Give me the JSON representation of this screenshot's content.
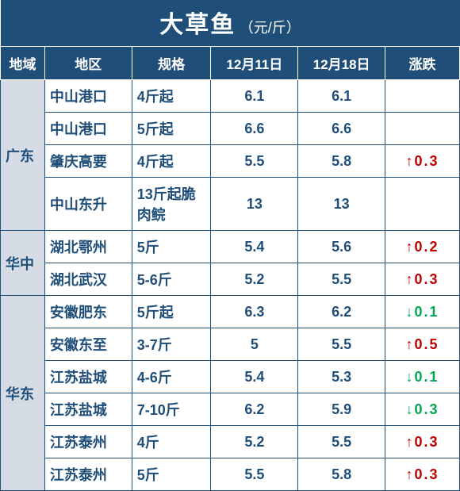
{
  "title_main": "大草鱼",
  "title_sub": "（元/斤）",
  "headers": {
    "region": "地域",
    "location": "地区",
    "spec": "规格",
    "date1": "12月11日",
    "date2": "12月18日",
    "change": "涨跌"
  },
  "regions": [
    {
      "name": "广东",
      "rows": [
        {
          "loc": "中山港口",
          "spec": "4斤起",
          "d1": "6.1",
          "d2": "6.1",
          "chg": "",
          "dir": ""
        },
        {
          "loc": "中山港口",
          "spec": "5斤起",
          "d1": "6.6",
          "d2": "6.6",
          "chg": "",
          "dir": ""
        },
        {
          "loc": "肇庆高要",
          "spec": "4斤起",
          "d1": "5.5",
          "d2": "5.8",
          "chg": "0.3",
          "dir": "up"
        },
        {
          "loc": "中山东升",
          "spec": "13斤起脆肉鲩",
          "d1": "13",
          "d2": "13",
          "chg": "",
          "dir": ""
        }
      ]
    },
    {
      "name": "华中",
      "rows": [
        {
          "loc": "湖北鄂州",
          "spec": "5斤",
          "d1": "5.4",
          "d2": "5.6",
          "chg": "0.2",
          "dir": "up"
        },
        {
          "loc": "湖北武汉",
          "spec": "5-6斤",
          "d1": "5.2",
          "d2": "5.5",
          "chg": "0.3",
          "dir": "up"
        }
      ]
    },
    {
      "name": "华东",
      "rows": [
        {
          "loc": "安徽肥东",
          "spec": "5斤起",
          "d1": "6.3",
          "d2": "6.2",
          "chg": "0.1",
          "dir": "down"
        },
        {
          "loc": "安徽东至",
          "spec": "3-7斤",
          "d1": "5",
          "d2": "5.5",
          "chg": "0.5",
          "dir": "up"
        },
        {
          "loc": "江苏盐城",
          "spec": "4-6斤",
          "d1": "5.4",
          "d2": "5.3",
          "chg": "0.1",
          "dir": "down"
        },
        {
          "loc": "江苏盐城",
          "spec": "7-10斤",
          "d1": "6.2",
          "d2": "5.9",
          "chg": "0.3",
          "dir": "down"
        },
        {
          "loc": "江苏泰州",
          "spec": "4斤",
          "d1": "5.2",
          "d2": "5.5",
          "chg": "0.3",
          "dir": "up"
        },
        {
          "loc": "江苏泰州",
          "spec": "5斤",
          "d1": "5.5",
          "d2": "5.8",
          "chg": "0.3",
          "dir": "up"
        }
      ]
    }
  ],
  "arrows": {
    "up": "↑",
    "down": "↓"
  },
  "colors": {
    "header_bg": "#1f4e79",
    "header_fg": "#ffffff",
    "cell_border": "#1f4e79",
    "cell_fg": "#1f4e79",
    "region_bg": "#d6dce5",
    "up": "#c00000",
    "down": "#00a650"
  }
}
